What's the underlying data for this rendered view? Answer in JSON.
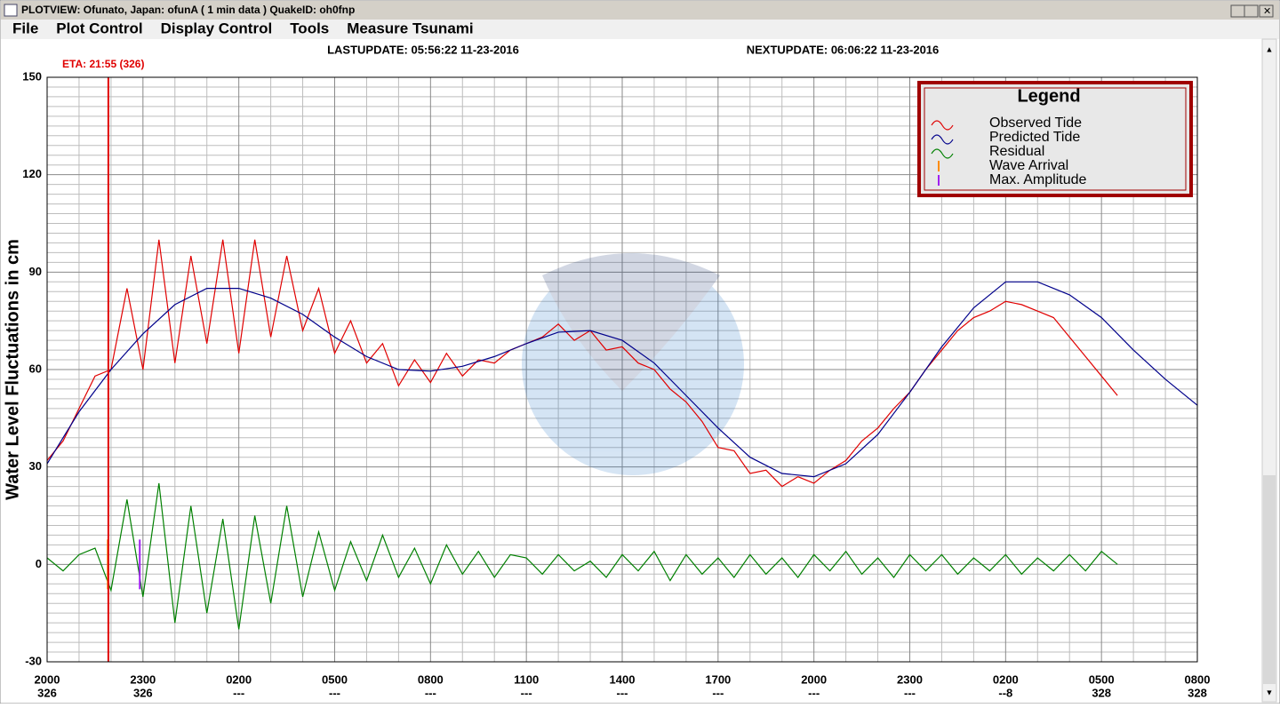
{
  "window": {
    "title": "PLOTVIEW:   Ofunato, Japan: ofunA (  1 min data )    QuakeID: oh0fnp",
    "menu": [
      "File",
      "Plot Control",
      "Display Control",
      "Tools",
      "Measure Tsunami"
    ]
  },
  "chart_data": {
    "type": "line",
    "last_update": "LASTUPDATE: 05:56:22 11-23-2016",
    "next_update": "NEXTUPDATE: 06:06:22 11-23-2016",
    "eta": {
      "label": "ETA: 21:55 (326)",
      "x": 1.917,
      "color": "#e00000"
    },
    "ylabel": "Water Level Fluctuations in cm",
    "legend_title": "Legend",
    "xlim": [
      0,
      36
    ],
    "ylim": [
      -30,
      150
    ],
    "yticks": [
      -30,
      0,
      30,
      60,
      90,
      120,
      150
    ],
    "xticks": [
      {
        "value": 0,
        "label": "2000"
      },
      {
        "value": 3,
        "label": "2300"
      },
      {
        "value": 6,
        "label": "0200"
      },
      {
        "value": 9,
        "label": "0500"
      },
      {
        "value": 12,
        "label": "0800"
      },
      {
        "value": 15,
        "label": "1100"
      },
      {
        "value": 18,
        "label": "1400"
      },
      {
        "value": 21,
        "label": "1700"
      },
      {
        "value": 24,
        "label": "2000"
      },
      {
        "value": 27,
        "label": "2300"
      },
      {
        "value": 30,
        "label": "0200"
      },
      {
        "value": 33,
        "label": "0500"
      },
      {
        "value": 36,
        "label": "0800"
      }
    ],
    "xtick_days": [
      "326",
      "326",
      "---",
      "---",
      "---",
      "---",
      "---",
      "---",
      "---",
      "---",
      "--8",
      "328",
      "328"
    ],
    "grid": true,
    "series": [
      {
        "name": "Observed Tide",
        "color": "#e00000",
        "x": [
          0,
          0.5,
          1,
          1.5,
          2,
          2.5,
          3,
          3.5,
          4,
          4.5,
          5,
          5.5,
          6,
          6.5,
          7,
          7.5,
          8,
          8.5,
          9,
          9.5,
          10,
          10.5,
          11,
          11.5,
          12,
          12.5,
          13,
          13.5,
          14,
          14.5,
          15,
          15.5,
          16,
          16.5,
          17,
          17.5,
          18,
          18.5,
          19,
          19.5,
          20,
          20.5,
          21,
          21.5,
          22,
          22.5,
          23,
          23.5,
          24,
          24.5,
          25,
          25.5,
          26,
          26.5,
          27,
          27.5,
          28,
          28.5,
          29,
          29.5,
          30,
          30.5,
          31,
          31.5,
          32,
          32.5,
          33,
          33.5
        ],
        "values": [
          32,
          38,
          48,
          58,
          60,
          85,
          60,
          100,
          62,
          95,
          68,
          100,
          65,
          100,
          70,
          95,
          72,
          85,
          65,
          75,
          62,
          68,
          55,
          63,
          56,
          65,
          58,
          63,
          62,
          66,
          68,
          70,
          74,
          69,
          72,
          66,
          67,
          62,
          60,
          54,
          50,
          44,
          36,
          35,
          28,
          29,
          24,
          27,
          25,
          29,
          32,
          38,
          42,
          48,
          53,
          60,
          66,
          72,
          76,
          78,
          81,
          80,
          78,
          76,
          70,
          64,
          58,
          52
        ]
      },
      {
        "name": "Predicted Tide",
        "color": "#00008b",
        "x": [
          0,
          1,
          2,
          3,
          4,
          5,
          6,
          7,
          8,
          9,
          10,
          11,
          12,
          13,
          14,
          15,
          16,
          17,
          18,
          19,
          20,
          21,
          22,
          23,
          24,
          25,
          26,
          27,
          28,
          29,
          30,
          31,
          32,
          33,
          34,
          35,
          36
        ],
        "values": [
          31,
          47,
          60,
          71,
          80,
          85,
          85,
          82,
          77,
          70,
          64,
          60,
          59.5,
          61,
          64,
          68,
          71.5,
          72,
          69,
          62,
          52,
          42,
          33,
          28,
          27,
          31,
          40,
          53,
          67,
          79,
          87,
          87,
          83,
          76,
          66,
          57,
          49
        ]
      },
      {
        "name": "Residual",
        "color": "#008000",
        "x": [
          0,
          0.5,
          1,
          1.5,
          2,
          2.5,
          3,
          3.5,
          4,
          4.5,
          5,
          5.5,
          6,
          6.5,
          7,
          7.5,
          8,
          8.5,
          9,
          9.5,
          10,
          10.5,
          11,
          11.5,
          12,
          12.5,
          13,
          13.5,
          14,
          14.5,
          15,
          15.5,
          16,
          16.5,
          17,
          17.5,
          18,
          18.5,
          19,
          19.5,
          20,
          20.5,
          21,
          21.5,
          22,
          22.5,
          23,
          23.5,
          24,
          24.5,
          25,
          25.5,
          26,
          26.5,
          27,
          27.5,
          28,
          28.5,
          29,
          29.5,
          30,
          30.5,
          31,
          31.5,
          32,
          32.5,
          33,
          33.5
        ],
        "values": [
          2,
          -2,
          3,
          5,
          -8,
          20,
          -10,
          25,
          -18,
          18,
          -15,
          14,
          -20,
          15,
          -12,
          18,
          -10,
          10,
          -8,
          7,
          -5,
          9,
          -4,
          5,
          -6,
          6,
          -3,
          4,
          -4,
          3,
          2,
          -3,
          3,
          -2,
          1,
          -4,
          3,
          -2,
          4,
          -5,
          3,
          -3,
          2,
          -4,
          3,
          -3,
          2,
          -4,
          3,
          -2,
          4,
          -3,
          2,
          -4,
          3,
          -2,
          3,
          -3,
          2,
          -2,
          3,
          -3,
          2,
          -2,
          3,
          -2,
          4,
          0
        ]
      }
    ],
    "markers": [
      {
        "name": "Wave Arrival",
        "color": "#ff8c00",
        "x": 1.9
      },
      {
        "name": "Max. Amplitude",
        "color": "#a020f0",
        "x": 2.9
      }
    ]
  }
}
